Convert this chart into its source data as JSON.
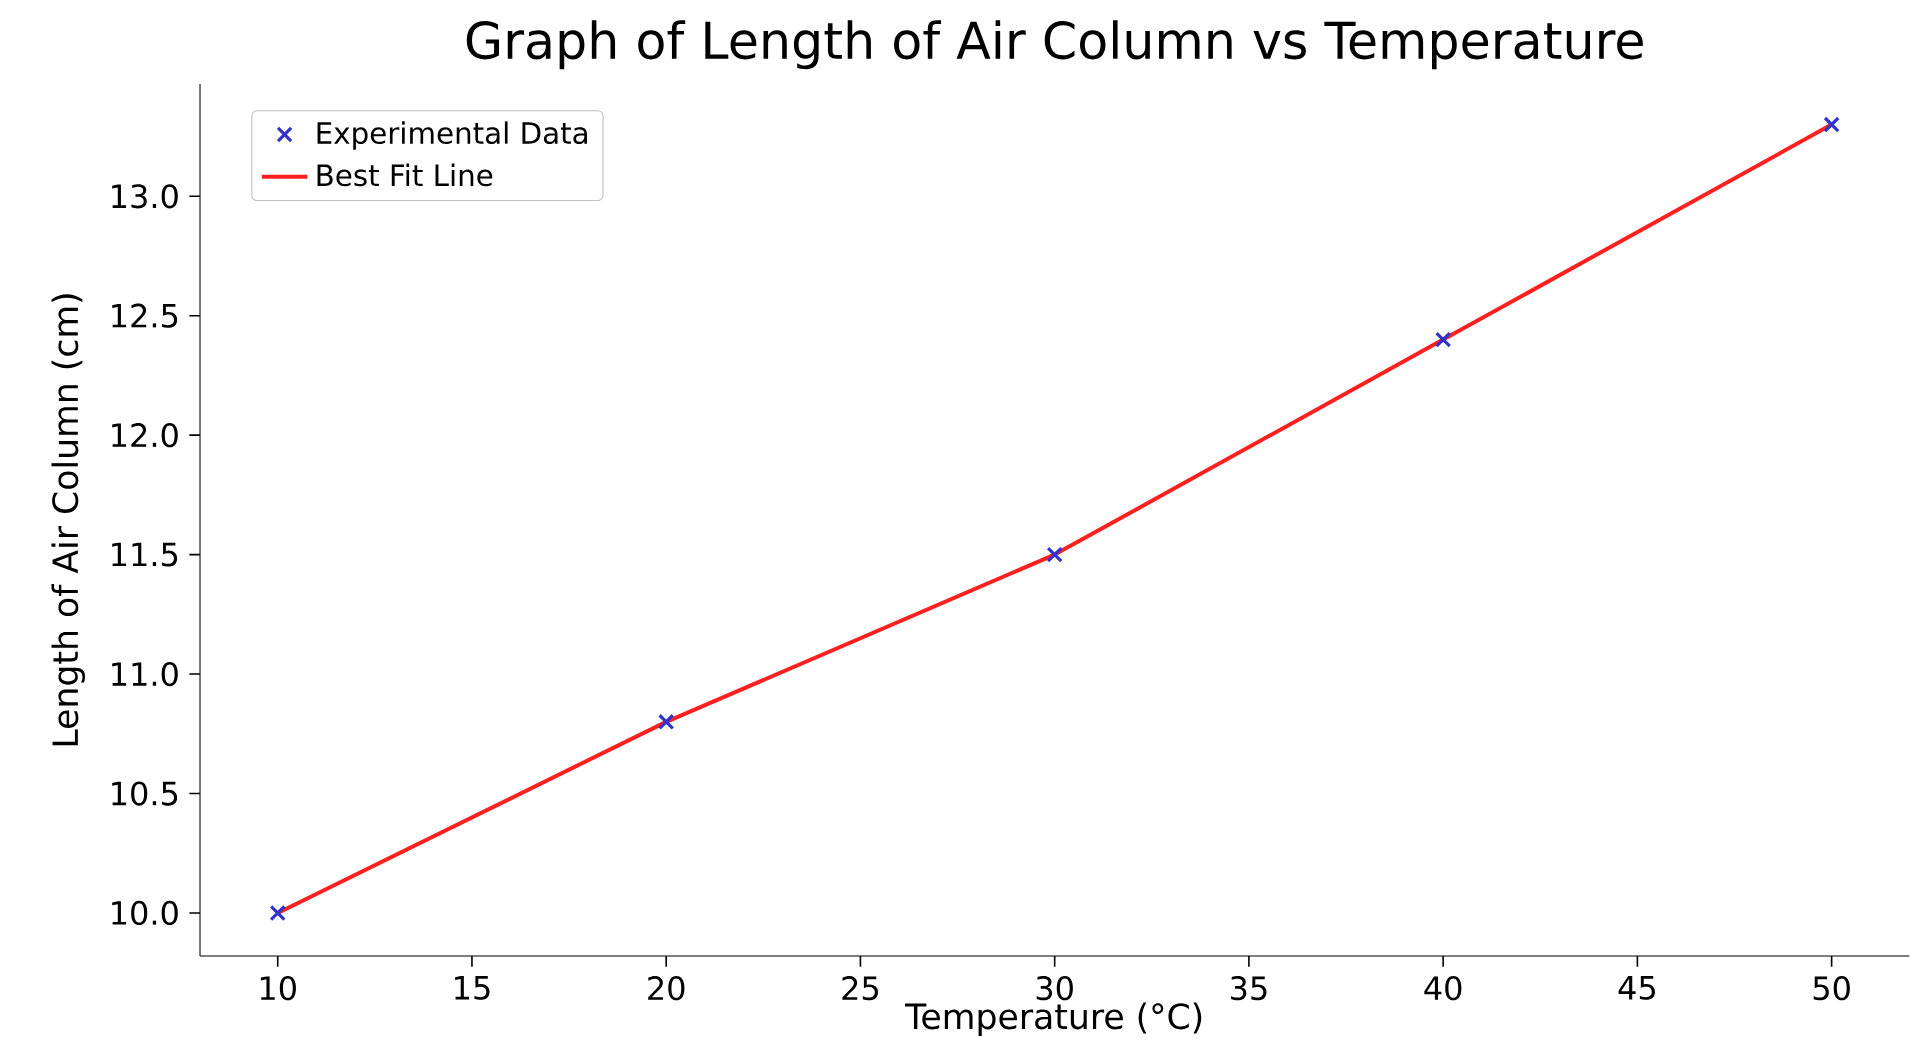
{
  "chart_data": {
    "type": "scatter",
    "title": "Graph of Length of Air Column vs Temperature",
    "xlabel": "Temperature (°C)",
    "ylabel": "Length of Air Column (cm)",
    "series": [
      {
        "name": "Experimental Data",
        "color": "#3333cc",
        "marker": "cross",
        "x": [
          10,
          20,
          30,
          40,
          50
        ],
        "values": [
          10.0,
          10.8,
          11.5,
          12.4,
          13.3
        ]
      },
      {
        "name": "Best Fit Line",
        "type": "line",
        "color": "#ff2020",
        "marker": "none",
        "line_style": "solid",
        "x": [
          10,
          20,
          30,
          40,
          50
        ],
        "values": [
          10.0,
          10.8,
          11.5,
          12.4,
          13.3
        ]
      }
    ],
    "xlim": [
      8,
      52
    ],
    "ylim": [
      9.82,
      13.47
    ],
    "xticks": [
      10,
      15,
      20,
      25,
      30,
      35,
      40,
      45,
      50
    ],
    "yticks": [
      {
        "value": 10.0,
        "label": "10.0"
      },
      {
        "value": 10.5,
        "label": "10.5"
      },
      {
        "value": 11.0,
        "label": "11.0"
      },
      {
        "value": 11.5,
        "label": "11.5"
      },
      {
        "value": 12.0,
        "label": "12.0"
      },
      {
        "value": 12.5,
        "label": "12.5"
      },
      {
        "value": 13.0,
        "label": "13.0"
      }
    ],
    "legend": "top left",
    "grid": false
  }
}
